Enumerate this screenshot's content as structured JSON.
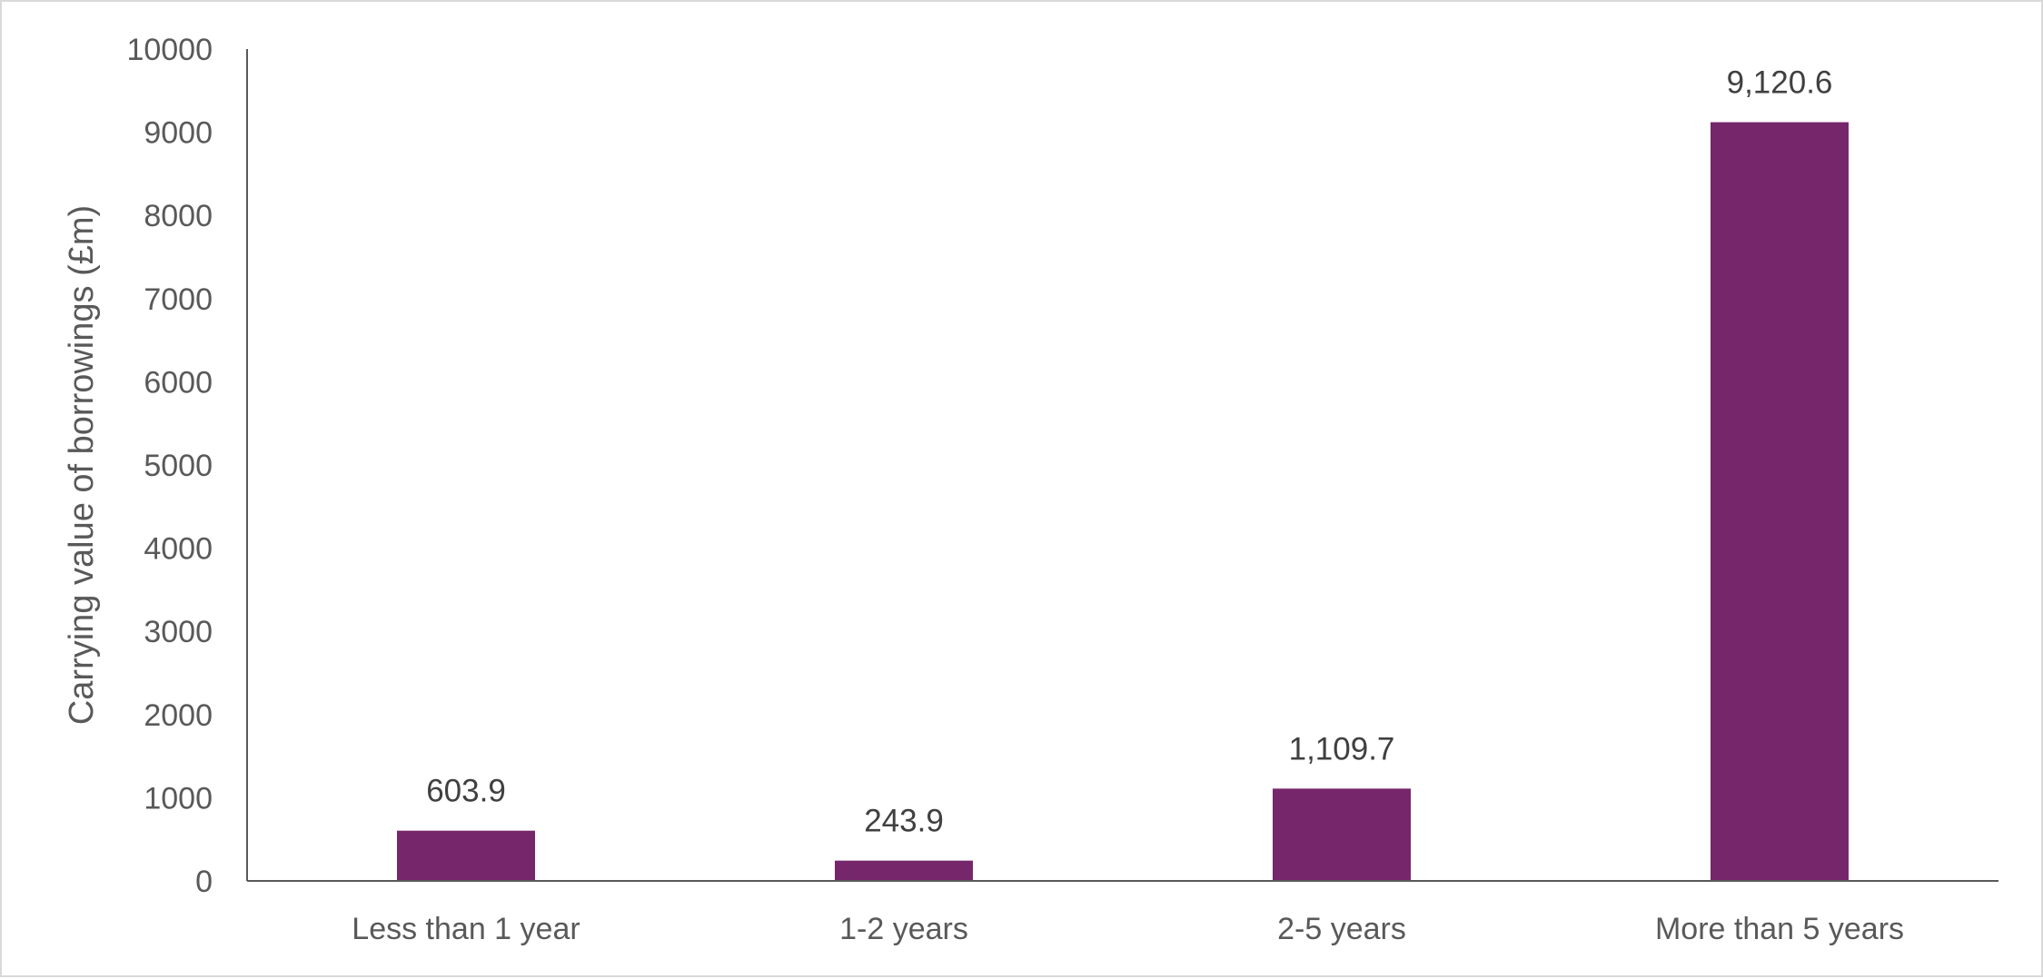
{
  "chart_data": {
    "type": "bar",
    "title": "",
    "xlabel": "",
    "ylabel": "Carrying value of borrowings (£m)",
    "categories": [
      "Less than 1 year",
      "1-2 years",
      "2-5 years",
      "More than 5 years"
    ],
    "values": [
      603.9,
      243.9,
      1109.7,
      9120.6
    ],
    "data_labels": [
      "603.9",
      "243.9",
      "1,109.7",
      "9,120.6"
    ],
    "ylim": [
      0,
      10000
    ],
    "yticks": [
      0,
      1000,
      2000,
      3000,
      4000,
      5000,
      6000,
      7000,
      8000,
      9000,
      10000
    ],
    "ytick_labels": [
      "0",
      "1000",
      "2000",
      "3000",
      "4000",
      "5000",
      "6000",
      "7000",
      "8000",
      "9000",
      "10000"
    ],
    "grid": false,
    "legend": "none",
    "bar_color": "#76276b",
    "axis_color": "#595959"
  }
}
